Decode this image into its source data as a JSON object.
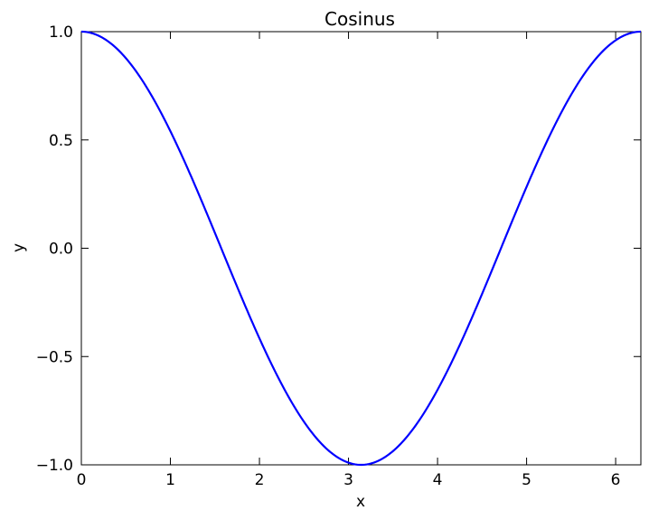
{
  "chart_data": {
    "type": "line",
    "title": "Cosinus",
    "xlabel": "x",
    "ylabel": "y",
    "xlim": [
      0,
      6.283185307
    ],
    "ylim": [
      -1.0,
      1.0
    ],
    "xticks": [
      0,
      1,
      2,
      3,
      4,
      5,
      6
    ],
    "xtick_labels": [
      "0",
      "1",
      "2",
      "3",
      "4",
      "5",
      "6"
    ],
    "yticks": [
      -1.0,
      -0.5,
      0.0,
      0.5,
      1.0
    ],
    "ytick_labels": [
      "−1.0",
      "−0.5",
      "0.0",
      "0.5",
      "1.0"
    ],
    "grid": false,
    "legend": false,
    "series": [
      {
        "color": "#0000ff",
        "function": "cos(x)",
        "x_range": [
          0,
          6.283185307
        ],
        "x": [
          0,
          0.5,
          1.0,
          1.5,
          2.0,
          2.5,
          3.0,
          3.1416,
          3.5,
          4.0,
          4.5,
          5.0,
          5.5,
          6.0,
          6.2832
        ],
        "y": [
          1.0,
          0.878,
          0.54,
          0.071,
          -0.416,
          -0.801,
          -0.99,
          -1.0,
          -0.936,
          -0.654,
          -0.211,
          0.284,
          0.709,
          0.96,
          1.0
        ]
      }
    ]
  }
}
